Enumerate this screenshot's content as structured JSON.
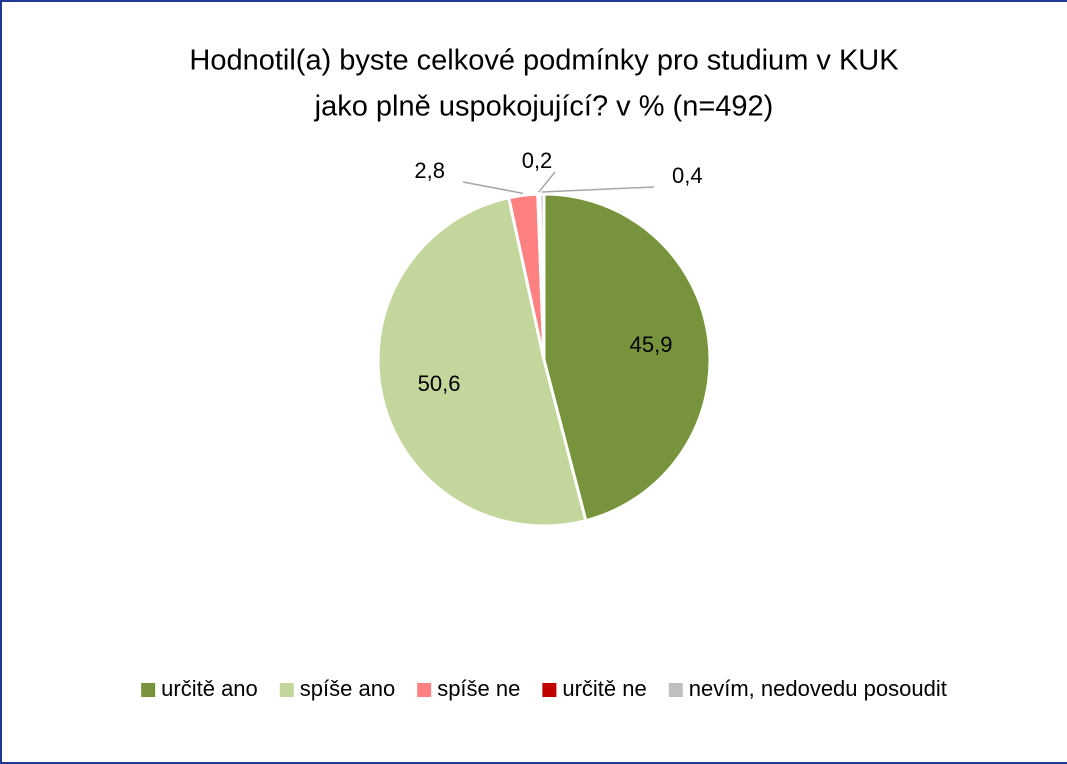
{
  "chart_data": {
    "type": "pie",
    "title": [
      "Hodnotil(a) byste celkové podmínky pro studium v KUK",
      "jako plně uspokojující? v % (n=492)"
    ],
    "categories": [
      "určitě ano",
      "spíše ano",
      "spíše ne",
      "určitě ne",
      "nevím, nedovedu posoudit"
    ],
    "values": [
      45.9,
      50.6,
      2.8,
      0.2,
      0.4
    ],
    "value_labels": [
      "45,9",
      "50,6",
      "2,8",
      "0,2",
      "0,4"
    ],
    "colors": [
      "#77933c",
      "#c3d69b",
      "#ff8080",
      "#c00000",
      "#bfbfbf"
    ],
    "legend": "bottom"
  }
}
